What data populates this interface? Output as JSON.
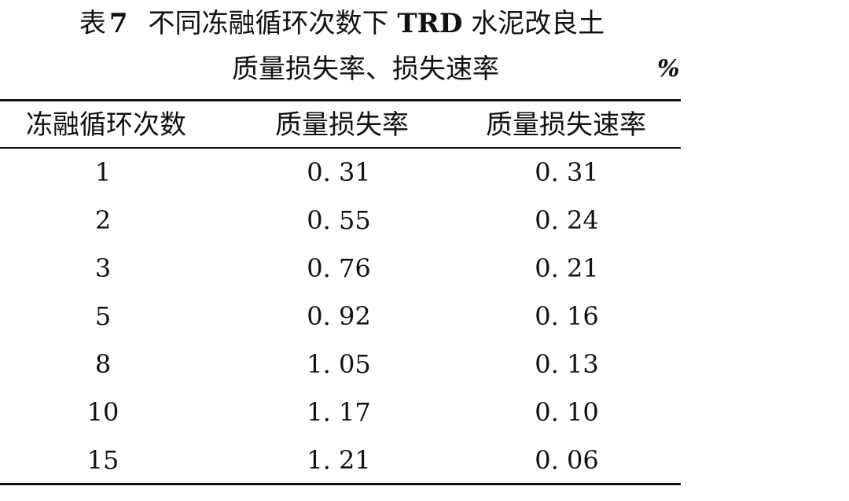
{
  "caption": {
    "label": "表",
    "number": "7",
    "text_a": "不同冻融循环次数下",
    "text_bold": "TRD",
    "text_b": "水泥改良土",
    "line2": "质量损失率、损失速率",
    "unit": "%"
  },
  "table": {
    "headers": [
      "冻融循环次数",
      "质量损失率",
      "质量损失速率"
    ],
    "rows": [
      [
        "1",
        "0. 31",
        "0. 31"
      ],
      [
        "2",
        "0. 55",
        "0. 24"
      ],
      [
        "3",
        "0. 76",
        "0. 21"
      ],
      [
        "5",
        "0. 92",
        "0. 16"
      ],
      [
        "8",
        "1. 05",
        "0. 13"
      ],
      [
        "10",
        "1. 17",
        "0. 10"
      ],
      [
        "15",
        "1. 21",
        "0. 06"
      ]
    ]
  }
}
